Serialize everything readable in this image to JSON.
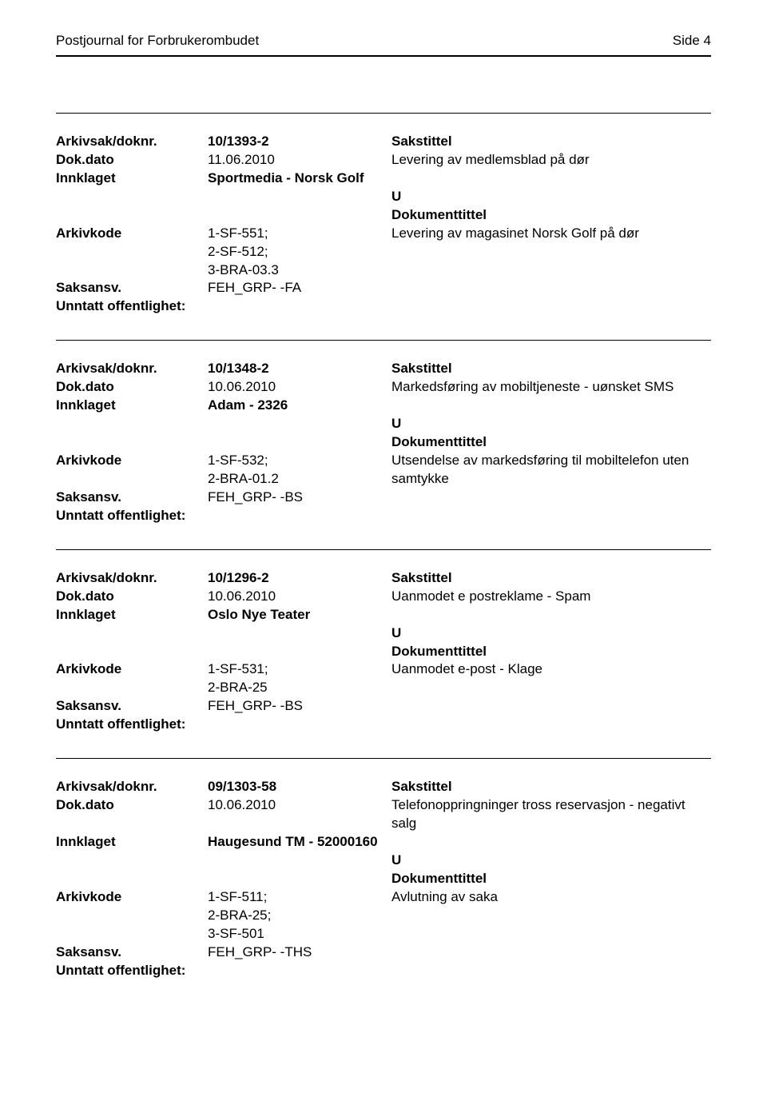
{
  "header": {
    "orgTitle": "Postjournal for Forbrukerombudet",
    "pageLabel": "Side 4"
  },
  "labels": {
    "arkivsakDoknr": "Arkivsak/doknr.",
    "dokDato": "Dok.dato",
    "innklaget": "Innklaget",
    "arkivkode": "Arkivkode",
    "saksansv": "Saksansv.",
    "unntatt": "Unntatt offentlighet:",
    "sakstittel": "Sakstittel",
    "dokumenttittel": "Dokumenttittel"
  },
  "records": [
    {
      "doknr": "10/1393-2",
      "dato": "11.06.2010",
      "sakstittel": "Levering av medlemsblad på dør",
      "innklaget": "Sportmedia - Norsk Golf",
      "typeLetter": "U",
      "arkivkode": "1-SF-551;\n2-SF-512;\n3-BRA-03.3",
      "doktittel": "Levering av magasinet Norsk Golf på dør",
      "saksansv": "FEH_GRP- -FA"
    },
    {
      "doknr": "10/1348-2",
      "dato": "10.06.2010",
      "sakstittel": "Markedsføring av mobiltjeneste - uønsket SMS",
      "innklaget": "Adam - 2326",
      "typeLetter": "U",
      "arkivkode": "1-SF-532;\n2-BRA-01.2",
      "doktittel": "Utsendelse av markedsføring til mobiltelefon uten samtykke",
      "saksansv": "FEH_GRP- -BS"
    },
    {
      "doknr": "10/1296-2",
      "dato": "10.06.2010",
      "sakstittel": "Uanmodet e postreklame - Spam",
      "innklaget": "Oslo Nye Teater",
      "typeLetter": "U",
      "arkivkode": "1-SF-531;\n2-BRA-25",
      "doktittel": "Uanmodet e-post - Klage",
      "saksansv": "FEH_GRP- -BS"
    },
    {
      "doknr": "09/1303-58",
      "dato": "10.06.2010",
      "sakstittel": "Telefonoppringninger tross reservasjon - negativt salg",
      "innklaget": "Haugesund TM - 52000160",
      "typeLetter": "U",
      "arkivkode": "1-SF-511;\n2-BRA-25;\n3-SF-501",
      "doktittel": "Avlutning av saka",
      "saksansv": "FEH_GRP- -THS"
    }
  ]
}
